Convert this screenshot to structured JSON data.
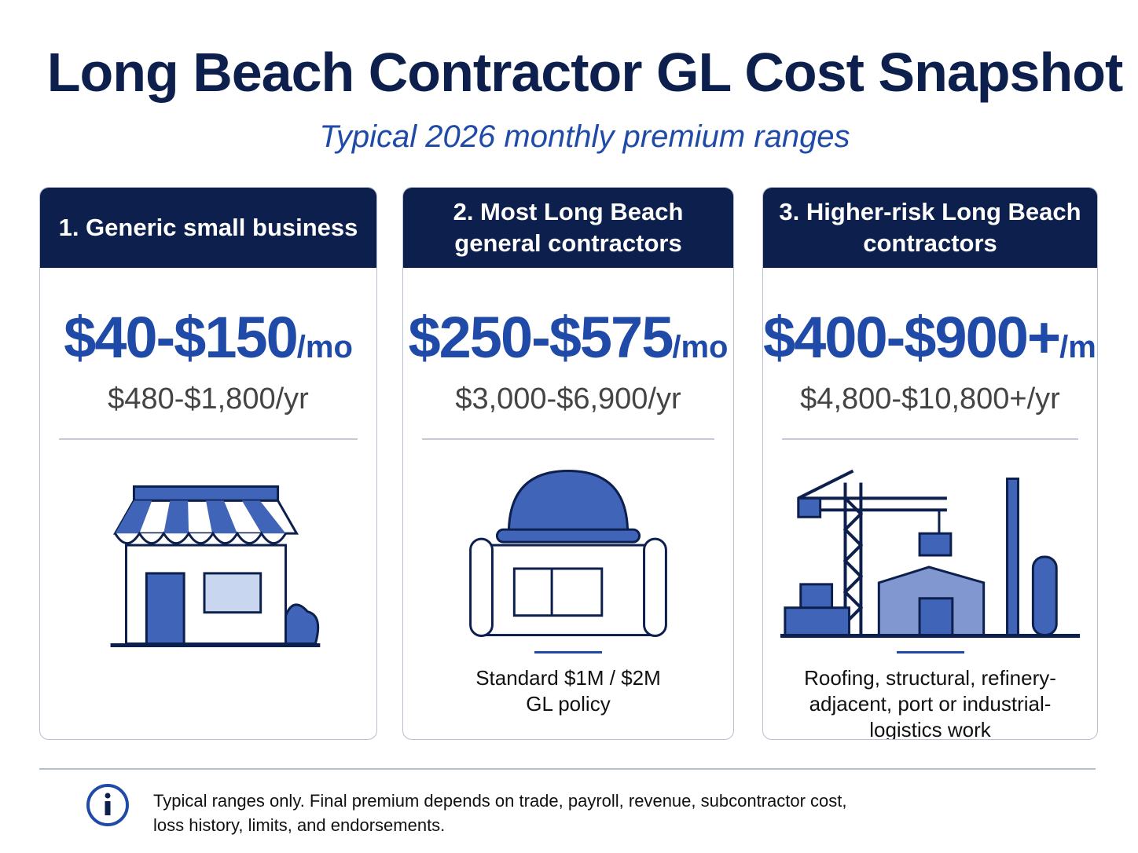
{
  "header": {
    "title": "Long Beach Contractor GL Cost Snapshot",
    "subtitle": "Typical 2026 monthly premium ranges"
  },
  "cards": [
    {
      "heading": [
        "1. Generic small business"
      ],
      "price": "$40-$150",
      "unit": "/mo",
      "yearly": "$480-$1,800/yr",
      "note": []
    },
    {
      "heading": [
        "2. Most Long Beach",
        "general contractors"
      ],
      "price": "$250-$575",
      "unit": "/mo",
      "yearly": "$3,000-$6,900/yr",
      "note": [
        "Standard $1M / $2M",
        "GL policy"
      ]
    },
    {
      "heading": [
        "3. Higher-risk Long Beach",
        "contractors"
      ],
      "price": "$400-$900+",
      "unit": "/mo",
      "yearly": "$4,800-$10,800+/yr",
      "note": [
        "Roofing, structural, refinery-",
        "adjacent, port or industrial-",
        "logistics work"
      ]
    }
  ],
  "footer": {
    "lines": [
      "Typical ranges only.  Final premium depends on trade, payroll, revenue, subcontractor cost,",
      "loss history, limits, and endorsements."
    ]
  }
}
